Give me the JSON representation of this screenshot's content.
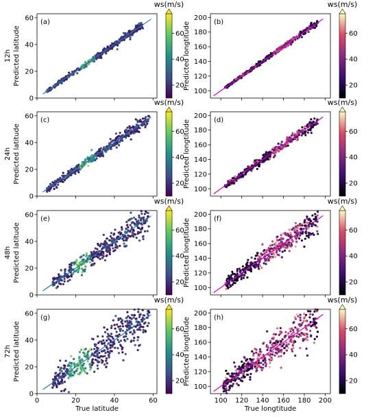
{
  "figure": {
    "colorbar_label": "ws(m/s)",
    "colorbar_ticks": [
      20,
      40,
      60
    ],
    "colorbar_range": [
      10,
      75
    ],
    "colormaps": {
      "left": "viridis",
      "right": "magma"
    }
  },
  "chart_data": [
    {
      "type": "scatter",
      "panel": "(a)",
      "row_label": "12h",
      "xlabel": "",
      "ylabel": "Predicted latitude",
      "xlim": [
        0,
        62
      ],
      "ylim": [
        0,
        63
      ],
      "xticks": [
        0,
        20,
        40,
        60
      ],
      "yticks": [
        0,
        20,
        40,
        60
      ],
      "show_xticklabels": false,
      "colormap": "viridis",
      "reference_line": [
        [
          3,
          3
        ],
        [
          59,
          59
        ]
      ],
      "spread": 1.0,
      "n_points": 420,
      "x_range": [
        5,
        55
      ],
      "hot_range": [
        22,
        30
      ],
      "line_color": "#1f77b4"
    },
    {
      "type": "scatter",
      "panel": "(b)",
      "row_label": "12h",
      "xlabel": "",
      "ylabel": "Predicted longtitude",
      "xlim": [
        90,
        205
      ],
      "ylim": [
        90,
        205
      ],
      "xticks": [
        100,
        120,
        140,
        160,
        180,
        200
      ],
      "yticks": [
        100,
        120,
        140,
        160,
        180,
        200
      ],
      "show_xticklabels": false,
      "colormap": "magma",
      "reference_line": [
        [
          93,
          93
        ],
        [
          198,
          198
        ]
      ],
      "spread": 1.3,
      "n_points": 420,
      "x_range": [
        104,
        193
      ],
      "hot_range": [
        150,
        175
      ],
      "line_color": "#cc00cc"
    },
    {
      "type": "scatter",
      "panel": "(c)",
      "row_label": "24h",
      "xlabel": "",
      "ylabel": "Predicted latitude",
      "xlim": [
        0,
        62
      ],
      "ylim": [
        0,
        63
      ],
      "xticks": [
        0,
        20,
        40,
        60
      ],
      "yticks": [
        0,
        20,
        40,
        60
      ],
      "show_xticklabels": false,
      "colormap": "viridis",
      "reference_line": [
        [
          3,
          3
        ],
        [
          59,
          59
        ]
      ],
      "spread": 1.8,
      "n_points": 420,
      "x_range": [
        5,
        58
      ],
      "hot_range": [
        22,
        30
      ],
      "line_color": "#1f77b4"
    },
    {
      "type": "scatter",
      "panel": "(d)",
      "row_label": "24h",
      "xlabel": "",
      "ylabel": "Predicted longtitude",
      "xlim": [
        90,
        205
      ],
      "ylim": [
        90,
        205
      ],
      "xticks": [
        100,
        120,
        140,
        160,
        180,
        200
      ],
      "yticks": [
        100,
        120,
        140,
        160,
        180,
        200
      ],
      "show_xticklabels": false,
      "colormap": "magma",
      "reference_line": [
        [
          93,
          93
        ],
        [
          198,
          198
        ]
      ],
      "spread": 2.8,
      "n_points": 420,
      "x_range": [
        104,
        193
      ],
      "hot_range": [
        150,
        175
      ],
      "line_color": "#cc00cc"
    },
    {
      "type": "scatter",
      "panel": "(e)",
      "row_label": "48h",
      "xlabel": "",
      "ylabel": "Predicted latitude",
      "xlim": [
        0,
        62
      ],
      "ylim": [
        0,
        63
      ],
      "xticks": [
        0,
        20,
        40,
        60
      ],
      "yticks": [
        0,
        20,
        40,
        60
      ],
      "show_xticklabels": false,
      "colormap": "viridis",
      "reference_line": [
        [
          3,
          3
        ],
        [
          59,
          59
        ]
      ],
      "spread": 3.8,
      "n_points": 420,
      "x_range": [
        8,
        58
      ],
      "hot_range": [
        18,
        28
      ],
      "line_color": "#1f77b4"
    },
    {
      "type": "scatter",
      "panel": "(f)",
      "row_label": "48h",
      "xlabel": "",
      "ylabel": "Predicted longtitude",
      "xlim": [
        90,
        205
      ],
      "ylim": [
        90,
        205
      ],
      "xticks": [
        100,
        120,
        140,
        160,
        180,
        200
      ],
      "yticks": [
        100,
        120,
        140,
        160,
        180,
        200
      ],
      "show_xticklabels": false,
      "colormap": "magma",
      "reference_line": [
        [
          93,
          93
        ],
        [
          198,
          198
        ]
      ],
      "spread": 6.0,
      "n_points": 420,
      "x_range": [
        104,
        193
      ],
      "hot_range": [
        135,
        175
      ],
      "line_color": "#cc00cc"
    },
    {
      "type": "scatter",
      "panel": "(g)",
      "row_label": "72h",
      "xlabel": "True latitude",
      "ylabel": "Predicted latitude",
      "xlim": [
        0,
        62
      ],
      "ylim": [
        0,
        63
      ],
      "xticks": [
        0,
        20,
        40,
        60
      ],
      "yticks": [
        0,
        20,
        40,
        60
      ],
      "show_xticklabels": true,
      "colormap": "viridis",
      "reference_line": [
        [
          3,
          3
        ],
        [
          59,
          59
        ]
      ],
      "spread": 6.5,
      "n_points": 460,
      "x_range": [
        8,
        58
      ],
      "hot_range": [
        16,
        28
      ],
      "line_color": "#1f77b4"
    },
    {
      "type": "scatter",
      "panel": "(h)",
      "row_label": "72h",
      "xlabel": "True longtitude",
      "ylabel": "Predicted longtitude",
      "xlim": [
        90,
        205
      ],
      "ylim": [
        90,
        205
      ],
      "xticks": [
        100,
        120,
        140,
        160,
        180,
        200
      ],
      "yticks": [
        100,
        120,
        140,
        160,
        180,
        200
      ],
      "show_xticklabels": true,
      "colormap": "magma",
      "reference_line": [
        [
          93,
          93
        ],
        [
          198,
          198
        ]
      ],
      "spread": 10.0,
      "n_points": 460,
      "x_range": [
        102,
        193
      ],
      "hot_range": [
        130,
        185
      ],
      "line_color": "#cc00cc"
    }
  ]
}
